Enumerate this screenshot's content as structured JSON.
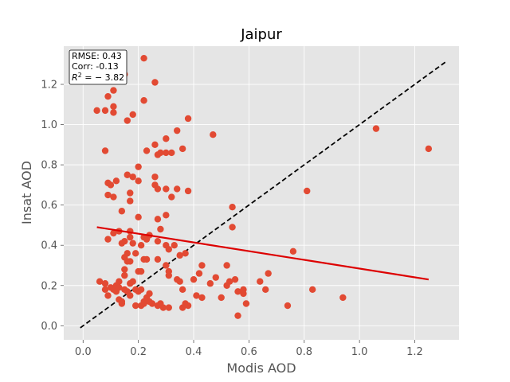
{
  "chart_data": {
    "type": "scatter",
    "title": "Jaipur",
    "xlabel": "Modis AOD",
    "ylabel": "Insat AOD",
    "xlim": [
      -0.07,
      1.36
    ],
    "ylim": [
      -0.07,
      1.39
    ],
    "xticks": [
      "0.0",
      "0.2",
      "0.4",
      "0.6",
      "0.8",
      "1.0",
      "1.2"
    ],
    "yticks": [
      "0.0",
      "0.2",
      "0.4",
      "0.6",
      "0.8",
      "1.0",
      "1.2"
    ],
    "grid": true,
    "stats": {
      "rmse": "RMSE: 0.43",
      "corr": "Corr: -0.13",
      "r2_prefix": "R",
      "r2_exp": "2",
      "r2_suffix": " = − 3.82",
      "placement": "top-left"
    },
    "colors": {
      "background": "#e5e5e5",
      "grid": "#ffffff",
      "points": "#e24a33",
      "regression": "#dd0000",
      "identity": "#000000"
    },
    "identity_line": {
      "x": [
        -0.01,
        1.31
      ],
      "y": [
        -0.01,
        1.31
      ],
      "style": "dashed"
    },
    "regression_line": {
      "x": [
        0.05,
        1.25
      ],
      "y": [
        0.49,
        0.23
      ]
    },
    "points": [
      [
        0.05,
        1.07
      ],
      [
        0.08,
        1.07
      ],
      [
        0.09,
        1.14
      ],
      [
        0.11,
        1.17
      ],
      [
        0.11,
        1.06
      ],
      [
        0.11,
        1.09
      ],
      [
        0.15,
        1.25
      ],
      [
        0.16,
        1.02
      ],
      [
        0.18,
        1.05
      ],
      [
        0.22,
        1.33
      ],
      [
        0.26,
        1.21
      ],
      [
        0.22,
        1.12
      ],
      [
        0.08,
        0.87
      ],
      [
        0.09,
        0.71
      ],
      [
        0.1,
        0.7
      ],
      [
        0.12,
        0.72
      ],
      [
        0.09,
        0.65
      ],
      [
        0.11,
        0.64
      ],
      [
        0.16,
        0.75
      ],
      [
        0.18,
        0.74
      ],
      [
        0.2,
        0.79
      ],
      [
        0.2,
        0.72
      ],
      [
        0.17,
        0.66
      ],
      [
        0.17,
        0.62
      ],
      [
        0.14,
        0.57
      ],
      [
        0.2,
        0.54
      ],
      [
        0.23,
        0.87
      ],
      [
        0.26,
        0.9
      ],
      [
        0.27,
        0.85
      ],
      [
        0.28,
        0.86
      ],
      [
        0.3,
        0.86
      ],
      [
        0.3,
        0.93
      ],
      [
        0.32,
        0.86
      ],
      [
        0.34,
        0.97
      ],
      [
        0.36,
        0.88
      ],
      [
        0.38,
        1.03
      ],
      [
        0.26,
        0.74
      ],
      [
        0.26,
        0.7
      ],
      [
        0.27,
        0.68
      ],
      [
        0.3,
        0.68
      ],
      [
        0.34,
        0.68
      ],
      [
        0.38,
        0.67
      ],
      [
        0.47,
        0.95
      ],
      [
        0.32,
        0.64
      ],
      [
        0.3,
        0.55
      ],
      [
        0.27,
        0.53
      ],
      [
        0.28,
        0.48
      ],
      [
        0.09,
        0.43
      ],
      [
        0.11,
        0.46
      ],
      [
        0.13,
        0.47
      ],
      [
        0.14,
        0.41
      ],
      [
        0.15,
        0.42
      ],
      [
        0.17,
        0.44
      ],
      [
        0.17,
        0.47
      ],
      [
        0.16,
        0.36
      ],
      [
        0.18,
        0.41
      ],
      [
        0.19,
        0.36
      ],
      [
        0.21,
        0.4
      ],
      [
        0.22,
        0.44
      ],
      [
        0.23,
        0.43
      ],
      [
        0.24,
        0.45
      ],
      [
        0.27,
        0.42
      ],
      [
        0.3,
        0.4
      ],
      [
        0.31,
        0.38
      ],
      [
        0.33,
        0.4
      ],
      [
        0.35,
        0.35
      ],
      [
        0.37,
        0.36
      ],
      [
        0.15,
        0.34
      ],
      [
        0.16,
        0.32
      ],
      [
        0.17,
        0.32
      ],
      [
        0.15,
        0.28
      ],
      [
        0.2,
        0.27
      ],
      [
        0.21,
        0.27
      ],
      [
        0.22,
        0.33
      ],
      [
        0.23,
        0.33
      ],
      [
        0.27,
        0.33
      ],
      [
        0.3,
        0.3
      ],
      [
        0.31,
        0.27
      ],
      [
        0.31,
        0.25
      ],
      [
        0.34,
        0.23
      ],
      [
        0.35,
        0.22
      ],
      [
        0.17,
        0.21
      ],
      [
        0.18,
        0.22
      ],
      [
        0.19,
        0.18
      ],
      [
        0.2,
        0.17
      ],
      [
        0.21,
        0.18
      ],
      [
        0.15,
        0.25
      ],
      [
        0.13,
        0.22
      ],
      [
        0.06,
        0.22
      ],
      [
        0.08,
        0.21
      ],
      [
        0.08,
        0.18
      ],
      [
        0.09,
        0.15
      ],
      [
        0.1,
        0.19
      ],
      [
        0.11,
        0.18
      ],
      [
        0.12,
        0.2
      ],
      [
        0.12,
        0.17
      ],
      [
        0.13,
        0.19
      ],
      [
        0.13,
        0.13
      ],
      [
        0.14,
        0.11
      ],
      [
        0.14,
        0.12
      ],
      [
        0.15,
        0.18
      ],
      [
        0.16,
        0.17
      ],
      [
        0.17,
        0.15
      ],
      [
        0.19,
        0.1
      ],
      [
        0.21,
        0.1
      ],
      [
        0.22,
        0.11
      ],
      [
        0.22,
        0.12
      ],
      [
        0.23,
        0.14
      ],
      [
        0.24,
        0.16
      ],
      [
        0.24,
        0.12
      ],
      [
        0.25,
        0.11
      ],
      [
        0.27,
        0.1
      ],
      [
        0.28,
        0.11
      ],
      [
        0.29,
        0.09
      ],
      [
        0.31,
        0.09
      ],
      [
        0.36,
        0.09
      ],
      [
        0.37,
        0.11
      ],
      [
        0.38,
        0.1
      ],
      [
        0.36,
        0.18
      ],
      [
        0.41,
        0.15
      ],
      [
        0.4,
        0.23
      ],
      [
        0.42,
        0.26
      ],
      [
        0.43,
        0.3
      ],
      [
        0.43,
        0.14
      ],
      [
        0.46,
        0.21
      ],
      [
        0.48,
        0.24
      ],
      [
        0.5,
        0.14
      ],
      [
        0.52,
        0.2
      ],
      [
        0.52,
        0.3
      ],
      [
        0.53,
        0.22
      ],
      [
        0.54,
        0.49
      ],
      [
        0.54,
        0.59
      ],
      [
        0.55,
        0.23
      ],
      [
        0.56,
        0.17
      ],
      [
        0.56,
        0.05
      ],
      [
        0.58,
        0.16
      ],
      [
        0.59,
        0.11
      ],
      [
        0.58,
        0.18
      ],
      [
        0.64,
        0.22
      ],
      [
        0.67,
        0.26
      ],
      [
        0.66,
        0.18
      ],
      [
        0.74,
        0.1
      ],
      [
        0.76,
        0.37
      ],
      [
        0.81,
        0.67
      ],
      [
        0.83,
        0.18
      ],
      [
        0.94,
        0.14
      ],
      [
        1.06,
        0.98
      ],
      [
        1.25,
        0.88
      ]
    ]
  }
}
